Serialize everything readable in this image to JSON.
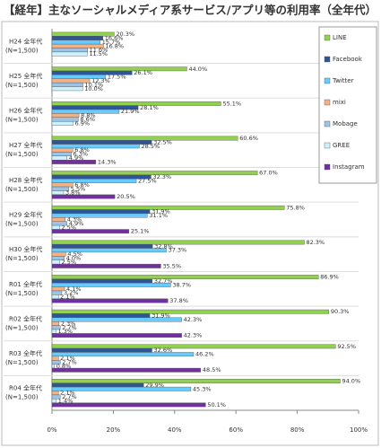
{
  "chart_data": {
    "type": "hbar",
    "title": "【経年】主なソーシャルメディア系サービス/アプリ等の利用率（全年代）",
    "categories": [
      "H24 全年代",
      "H25 全年代",
      "H26 全年代",
      "H27 全年代",
      "H28 全年代",
      "H29 全年代",
      "H30 全年代",
      "R01 全年代",
      "R02 全年代",
      "R03 全年代",
      "R04 全年代"
    ],
    "sample_sizes": [
      "(N=1,500)",
      "(N=1,500)",
      "(N=1,500)",
      "(N=1,500)",
      "(N=1,500)",
      "(N=1,500)",
      "(N=1,500)",
      "(N=1,500)",
      "(N=1,500)",
      "(N=1,500)",
      "(N=1,500)"
    ],
    "series": [
      {
        "name": "LINE",
        "color": "#92d050",
        "values": [
          20.3,
          44.0,
          55.1,
          60.6,
          67.0,
          75.8,
          82.3,
          86.9,
          90.3,
          92.5,
          94.0
        ],
        "value_labels": [
          "20.3%",
          "44.0%",
          "55.1%",
          "60.6%",
          "67.0%",
          "75.8%",
          "82.3%",
          "86.9%",
          "90.3%",
          "92.5%",
          "94.0%"
        ]
      },
      {
        "name": "Facebook",
        "color": "#2f5597",
        "values": [
          16.6,
          26.1,
          28.1,
          32.5,
          32.3,
          31.9,
          32.8,
          32.7,
          31.9,
          32.6,
          29.9
        ],
        "value_labels": [
          "16.6%",
          "26.1%",
          "28.1%",
          "32.5%",
          "32.3%",
          "31.9%",
          "32.8%",
          "32.7%",
          "31.9%",
          "32.6%",
          "29.9%"
        ]
      },
      {
        "name": "Twitter",
        "color": "#66ccff",
        "values": [
          15.7,
          17.5,
          21.9,
          28.5,
          27.5,
          31.1,
          37.3,
          38.7,
          42.3,
          46.2,
          45.3
        ],
        "value_labels": [
          "15.7%",
          "17.5%",
          "21.9%",
          "28.5%",
          "27.5%",
          "31.1%",
          "37.3%",
          "38.7%",
          "42.3%",
          "46.2%",
          "45.3%"
        ]
      },
      {
        "name": "mixi",
        "color": "#f4b183",
        "values": [
          16.8,
          12.3,
          8.8,
          6.8,
          6.8,
          4.3,
          4.5,
          4.1,
          2.3,
          2.1,
          2.1
        ],
        "value_labels": [
          "16.8%",
          "12.3%",
          "8.8%",
          "6.8%",
          "6.8%",
          "4.3%",
          "4.5%",
          "4.1%",
          "2.3%",
          "2.1%",
          "2.1%"
        ]
      },
      {
        "name": "Mobage",
        "color": "#9dc3e6",
        "values": [
          11.6,
          10.1,
          8.6,
          6.3,
          5.5,
          4.9,
          4.0,
          3.2,
          2.7,
          2.7,
          2.7
        ],
        "value_labels": [
          "11.6%",
          "10.1%",
          "8.6%",
          "6.3%",
          "5.5%",
          "4.9%",
          "4.0%",
          "3.2%",
          "2.7%",
          "2.7%",
          "2.7%"
        ]
      },
      {
        "name": "GREE",
        "color": "#ccf2ff",
        "values": [
          11.5,
          10.0,
          6.9,
          4.9,
          3.8,
          2.5,
          2.5,
          2.1,
          1.3,
          0.8,
          1.4
        ],
        "value_labels": [
          "11.5%",
          "10.0%",
          "6.9%",
          "4.9%",
          "3.8%",
          "2.5%",
          "2.5%",
          "2.1%",
          "1.3%",
          "0.8%",
          "1.4%"
        ]
      },
      {
        "name": "Instagram",
        "color": "#7030a0",
        "values": [
          null,
          null,
          null,
          14.3,
          20.5,
          25.1,
          35.5,
          37.8,
          42.3,
          48.5,
          50.1
        ],
        "value_labels": [
          null,
          null,
          null,
          "14.3%",
          "20.5%",
          "25.1%",
          "35.5%",
          "37.8%",
          "42.3%",
          "48.5%",
          "50.1%"
        ]
      }
    ],
    "xlim": [
      0,
      100
    ],
    "xticks": [
      {
        "value": 0,
        "label": "0%"
      },
      {
        "value": 20,
        "label": "20%"
      },
      {
        "value": 40,
        "label": "40%"
      },
      {
        "value": 60,
        "label": "60%"
      },
      {
        "value": 80,
        "label": "80%"
      },
      {
        "value": 100,
        "label": "100%"
      }
    ],
    "legend": "upper right"
  }
}
